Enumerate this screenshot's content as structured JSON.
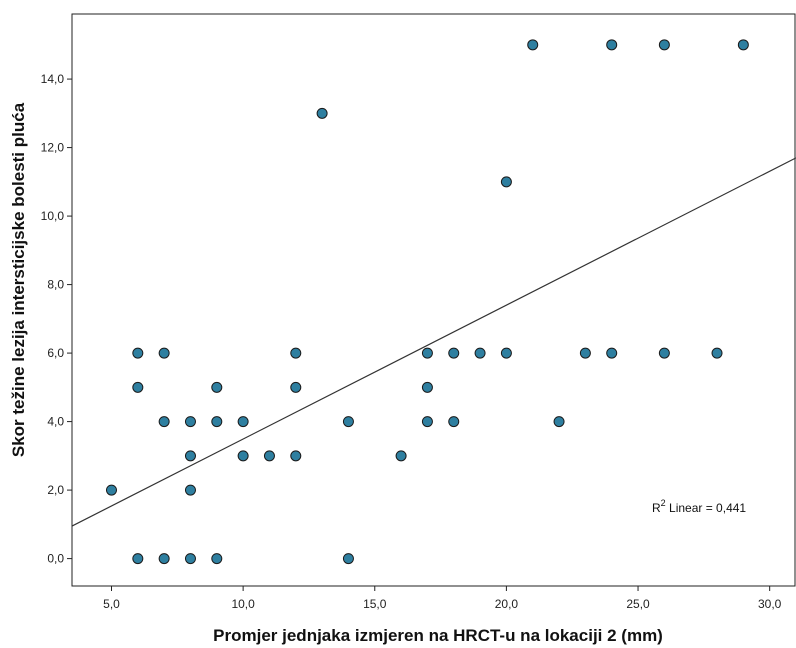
{
  "chart_data": {
    "type": "scatter",
    "xlabel": "Promjer jednjaka izmjeren na HRCT-u na lokaciji 2 (mm)",
    "ylabel": "Skor težine lezija intersticijske bolesti pluća",
    "xlim": [
      3.5,
      31.0
    ],
    "ylim": [
      -0.8,
      15.9
    ],
    "x_ticks": [
      5.0,
      10.0,
      15.0,
      20.0,
      25.0,
      30.0
    ],
    "x_tick_labels": [
      "5,0",
      "10,0",
      "15,0",
      "20,0",
      "25,0",
      "30,0"
    ],
    "y_ticks": [
      0.0,
      2.0,
      4.0,
      6.0,
      8.0,
      10.0,
      12.0,
      14.0
    ],
    "y_tick_labels": [
      "0,0",
      "2,0",
      "4,0",
      "6,0",
      "8,0",
      "10,0",
      "12,0",
      "14,0"
    ],
    "grid": false,
    "points": [
      {
        "x": 5,
        "y": 2
      },
      {
        "x": 6,
        "y": 6
      },
      {
        "x": 6,
        "y": 5
      },
      {
        "x": 6,
        "y": 0
      },
      {
        "x": 7,
        "y": 6
      },
      {
        "x": 7,
        "y": 4
      },
      {
        "x": 7,
        "y": 0
      },
      {
        "x": 8,
        "y": 4
      },
      {
        "x": 8,
        "y": 3
      },
      {
        "x": 8,
        "y": 2
      },
      {
        "x": 8,
        "y": 0
      },
      {
        "x": 9,
        "y": 5
      },
      {
        "x": 9,
        "y": 4
      },
      {
        "x": 9,
        "y": 0
      },
      {
        "x": 10,
        "y": 4
      },
      {
        "x": 10,
        "y": 3
      },
      {
        "x": 11,
        "y": 3
      },
      {
        "x": 12,
        "y": 6
      },
      {
        "x": 12,
        "y": 5
      },
      {
        "x": 12,
        "y": 3
      },
      {
        "x": 13,
        "y": 13
      },
      {
        "x": 14,
        "y": 4
      },
      {
        "x": 14,
        "y": 0
      },
      {
        "x": 16,
        "y": 3
      },
      {
        "x": 17,
        "y": 6
      },
      {
        "x": 17,
        "y": 5
      },
      {
        "x": 17,
        "y": 4
      },
      {
        "x": 18,
        "y": 6
      },
      {
        "x": 18,
        "y": 4
      },
      {
        "x": 19,
        "y": 6
      },
      {
        "x": 20,
        "y": 11
      },
      {
        "x": 20,
        "y": 6
      },
      {
        "x": 21,
        "y": 15
      },
      {
        "x": 22,
        "y": 4
      },
      {
        "x": 23,
        "y": 6
      },
      {
        "x": 24,
        "y": 15
      },
      {
        "x": 24,
        "y": 6
      },
      {
        "x": 26,
        "y": 15
      },
      {
        "x": 26,
        "y": 6
      },
      {
        "x": 28,
        "y": 6
      },
      {
        "x": 29,
        "y": 15
      }
    ],
    "fit_line": {
      "type": "linear",
      "x": [
        3.5,
        31.0
      ],
      "y": [
        0.95,
        11.7
      ]
    },
    "annotation": {
      "prefix": "R",
      "superscript": "2",
      "text": " Linear = 0,441"
    },
    "colors": {
      "marker_fill": "#2e7fa0",
      "marker_stroke": "#1a1a1a",
      "fit_line": "#333333",
      "frame": "#222222"
    }
  }
}
